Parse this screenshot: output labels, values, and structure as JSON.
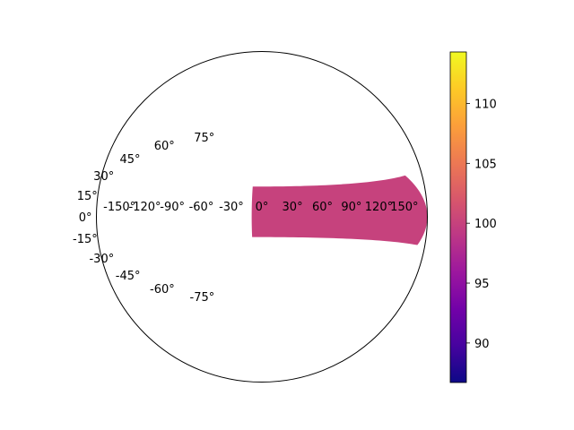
{
  "chart_data": {
    "type": "heatmap",
    "projection": "hammer",
    "title": "",
    "xlabel": "",
    "ylabel": "",
    "xlim": [
      -180,
      180
    ],
    "ylim": [
      -90,
      90
    ],
    "grid": false,
    "x_tick_values": [
      -150,
      -120,
      -90,
      -60,
      -30,
      0,
      30,
      60,
      90,
      120,
      150
    ],
    "x_tick_labels": [
      "-150°",
      "-120°",
      "-90°",
      "-60°",
      "-30°",
      "0°",
      "30°",
      "60°",
      "90°",
      "120°",
      "150°"
    ],
    "y_tick_values": [
      75,
      60,
      45,
      30,
      15,
      0,
      -15,
      -30,
      -45,
      -60,
      -75
    ],
    "y_tick_labels": [
      "75°",
      "60°",
      "45°",
      "30°",
      "15°",
      "0°",
      "-15°",
      "-30°",
      "-45°",
      "-60°",
      "-75°"
    ],
    "cells": [
      {
        "lon_range": [
          -10,
          180
        ],
        "lat_range": [
          -20,
          30
        ],
        "value": 100
      }
    ],
    "colorbar": {
      "colormap": "plasma",
      "range": [
        86.7,
        114.3
      ],
      "ticks": [
        90,
        95,
        100,
        105,
        110
      ],
      "tick_labels": [
        "90",
        "95",
        "100",
        "105",
        "110"
      ]
    },
    "colors": {
      "plasma": [
        "#0d0887",
        "#46039f",
        "#7201a8",
        "#9c179e",
        "#bd3786",
        "#d8576b",
        "#ed7953",
        "#fb9f3a",
        "#fdca26",
        "#f0f921"
      ]
    }
  }
}
